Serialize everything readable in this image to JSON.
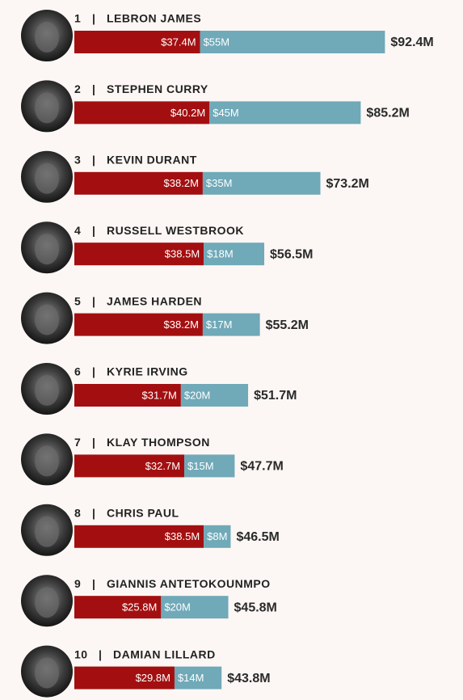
{
  "chart_data": {
    "type": "bar",
    "orientation": "horizontal",
    "stacked": true,
    "separator": "|",
    "ranks": [
      1,
      2,
      3,
      4,
      5,
      6,
      7,
      8,
      9,
      10
    ],
    "categories": [
      "LEBRON JAMES",
      "STEPHEN CURRY",
      "KEVIN DURANT",
      "RUSSELL WESTBROOK",
      "JAMES HARDEN",
      "KYRIE IRVING",
      "KLAY THOMPSON",
      "CHRIS PAUL",
      "GIANNIS ANTETOKOUNMPO",
      "DAMIAN LILLARD"
    ],
    "series": [
      {
        "color": "#a30f10",
        "values": [
          37.4,
          40.2,
          38.2,
          38.5,
          38.2,
          31.7,
          32.7,
          38.5,
          25.8,
          29.8
        ],
        "value_labels": [
          "$37.4M",
          "$40.2M",
          "$38.2M",
          "$38.5M",
          "$38.2M",
          "$31.7M",
          "$32.7M",
          "$38.5M",
          "$25.8M",
          "$29.8M"
        ]
      },
      {
        "color": "#70a9b8",
        "values": [
          55,
          45,
          35,
          18,
          17,
          20,
          15,
          8,
          20,
          14
        ],
        "value_labels": [
          "$55M",
          "$45M",
          "$35M",
          "$18M",
          "$17M",
          "$20M",
          "$15M",
          "$8M",
          "$20M",
          "$14M"
        ]
      }
    ],
    "totals": {
      "values": [
        92.4,
        85.2,
        73.2,
        56.5,
        55.2,
        51.7,
        47.7,
        46.5,
        45.8,
        43.8
      ],
      "value_labels": [
        "$92.4M",
        "$85.2M",
        "$73.2M",
        "$56.5M",
        "$55.2M",
        "$51.7M",
        "$47.7M",
        "$46.5M",
        "$45.8M",
        "$43.8M"
      ]
    }
  }
}
